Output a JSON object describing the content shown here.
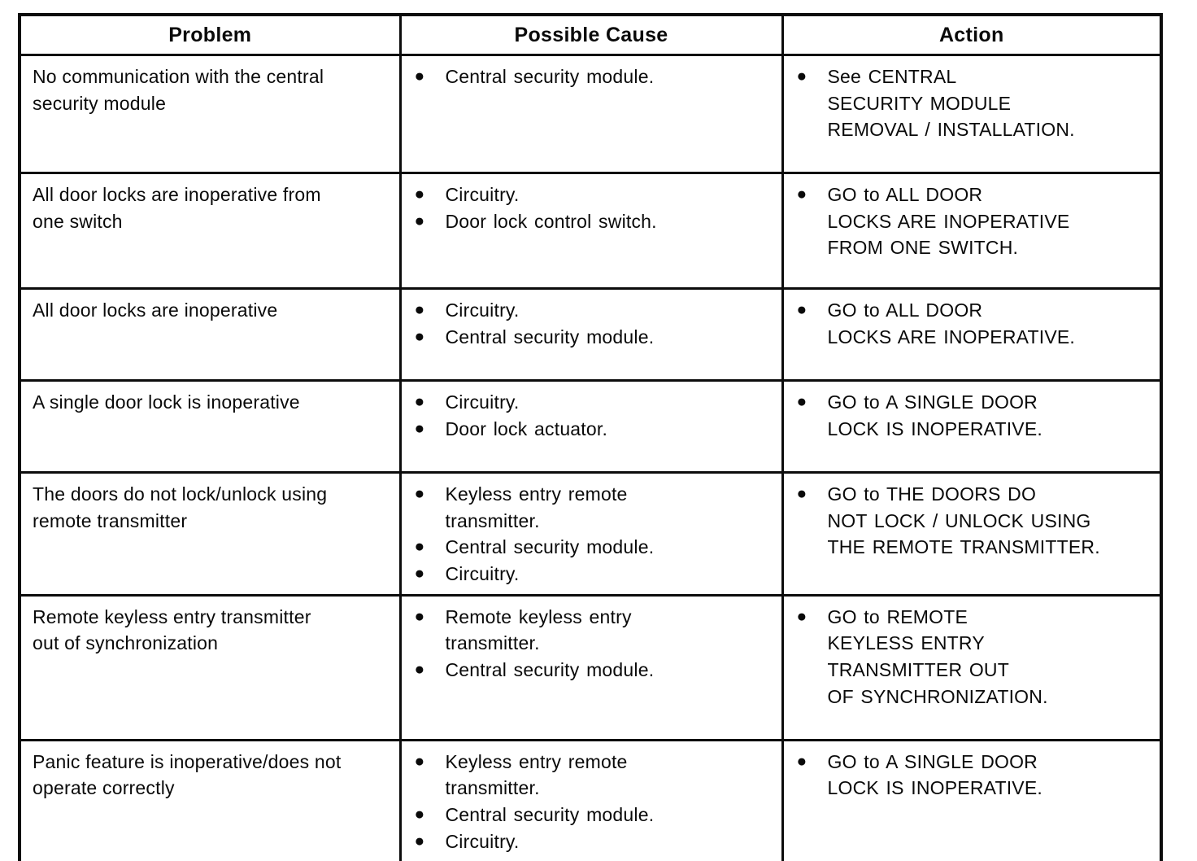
{
  "table": {
    "headers": [
      "Problem",
      "Possible Cause",
      "Action"
    ],
    "bullet_glyph": "●",
    "rows": [
      {
        "problem": "No communication with the central\nsecurity module",
        "causes": [
          "Central security module."
        ],
        "actions": [
          "See CENTRAL\nSECURITY MODULE\nREMOVAL / INSTALLATION."
        ]
      },
      {
        "problem": "All door locks are inoperative from\none switch",
        "causes": [
          "Circuitry.",
          "Door lock control switch."
        ],
        "actions": [
          "GO to ALL DOOR\nLOCKS ARE INOPERATIVE\nFROM ONE SWITCH."
        ]
      },
      {
        "problem": "All door locks are inoperative",
        "causes": [
          "Circuitry.",
          "Central security module."
        ],
        "actions": [
          "GO to ALL DOOR\nLOCKS ARE INOPERATIVE."
        ]
      },
      {
        "problem": "A single door lock is inoperative",
        "causes": [
          "Circuitry.",
          "Door lock actuator."
        ],
        "actions": [
          "GO to A SINGLE DOOR\nLOCK IS INOPERATIVE."
        ]
      },
      {
        "problem": "The doors do not lock/unlock using\nremote transmitter",
        "causes": [
          "Keyless entry remote\ntransmitter.",
          "Central security module.",
          "Circuitry."
        ],
        "actions": [
          "GO to THE DOORS DO\nNOT LOCK / UNLOCK USING\nTHE REMOTE TRANSMITTER."
        ]
      },
      {
        "problem": "Remote keyless entry transmitter\nout of synchronization",
        "causes": [
          "Remote keyless entry\ntransmitter.",
          "Central security module."
        ],
        "actions": [
          "GO to REMOTE\nKEYLESS ENTRY\nTRANSMITTER OUT\nOF SYNCHRONIZATION."
        ]
      },
      {
        "problem": "Panic feature is inoperative/does not\noperate correctly",
        "causes": [
          "Keyless entry remote\ntransmitter.",
          "Central security module.",
          "Circuitry."
        ],
        "actions": [
          "GO to A SINGLE DOOR\nLOCK IS INOPERATIVE."
        ]
      }
    ]
  }
}
